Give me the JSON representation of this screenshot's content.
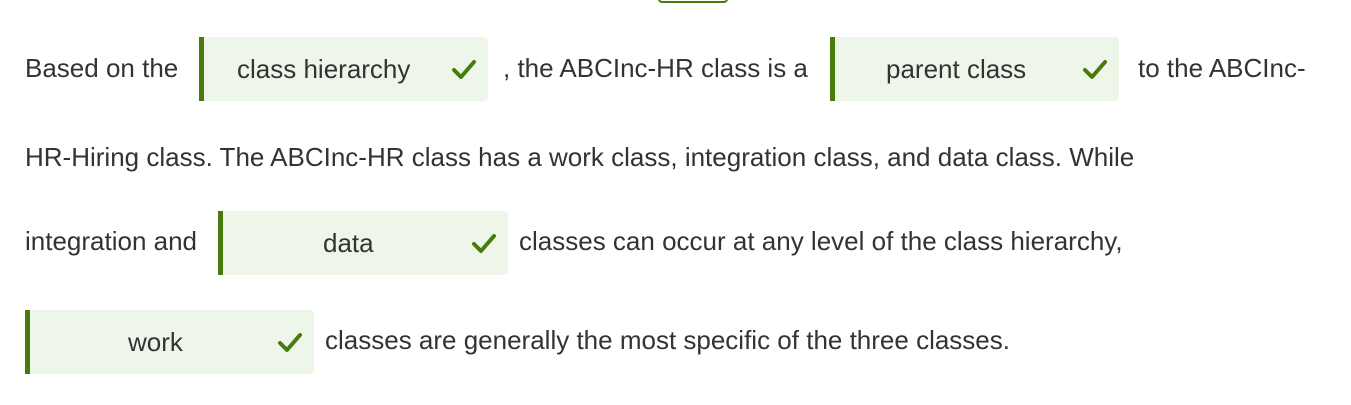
{
  "sentence": {
    "seg1": "Based on the",
    "seg2": ", the ABCInc-HR class is a",
    "seg3": "to the ABCInc-",
    "seg4": "HR-Hiring class. The ABCInc-HR class has a work class, integration class, and data class. While",
    "seg5": "integration and",
    "seg6": "classes can occur at any level of the class hierarchy,",
    "seg7": "classes are generally the most specific of the three classes."
  },
  "blanks": [
    {
      "answer": "class hierarchy",
      "status": "correct",
      "icon": "checkmark-icon"
    },
    {
      "answer": "parent class",
      "status": "correct",
      "icon": "checkmark-icon"
    },
    {
      "answer": "data",
      "status": "correct",
      "icon": "checkmark-icon"
    },
    {
      "answer": "work",
      "status": "correct",
      "icon": "checkmark-icon"
    }
  ],
  "colors": {
    "accent": "#4a7a0c",
    "blank_background": "#eef6e9",
    "text": "#333333"
  }
}
